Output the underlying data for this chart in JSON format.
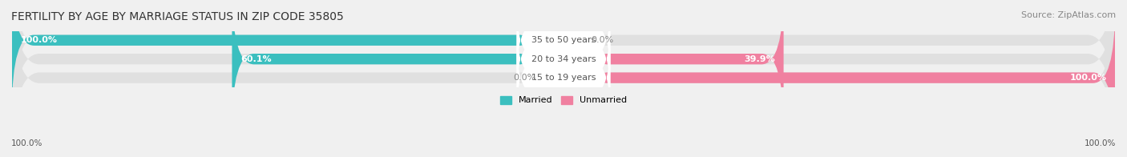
{
  "title": "FERTILITY BY AGE BY MARRIAGE STATUS IN ZIP CODE 35805",
  "source": "Source: ZipAtlas.com",
  "categories": [
    "15 to 19 years",
    "20 to 34 years",
    "35 to 50 years"
  ],
  "married": [
    0.0,
    60.1,
    100.0
  ],
  "unmarried": [
    100.0,
    39.9,
    0.0
  ],
  "married_color": "#3bbfbf",
  "unmarried_color": "#f080a0",
  "bg_color": "#f0f0f0",
  "bar_bg_color": "#e0e0e0",
  "title_fontsize": 10,
  "source_fontsize": 8,
  "label_fontsize": 8,
  "axis_label_fontsize": 7.5
}
